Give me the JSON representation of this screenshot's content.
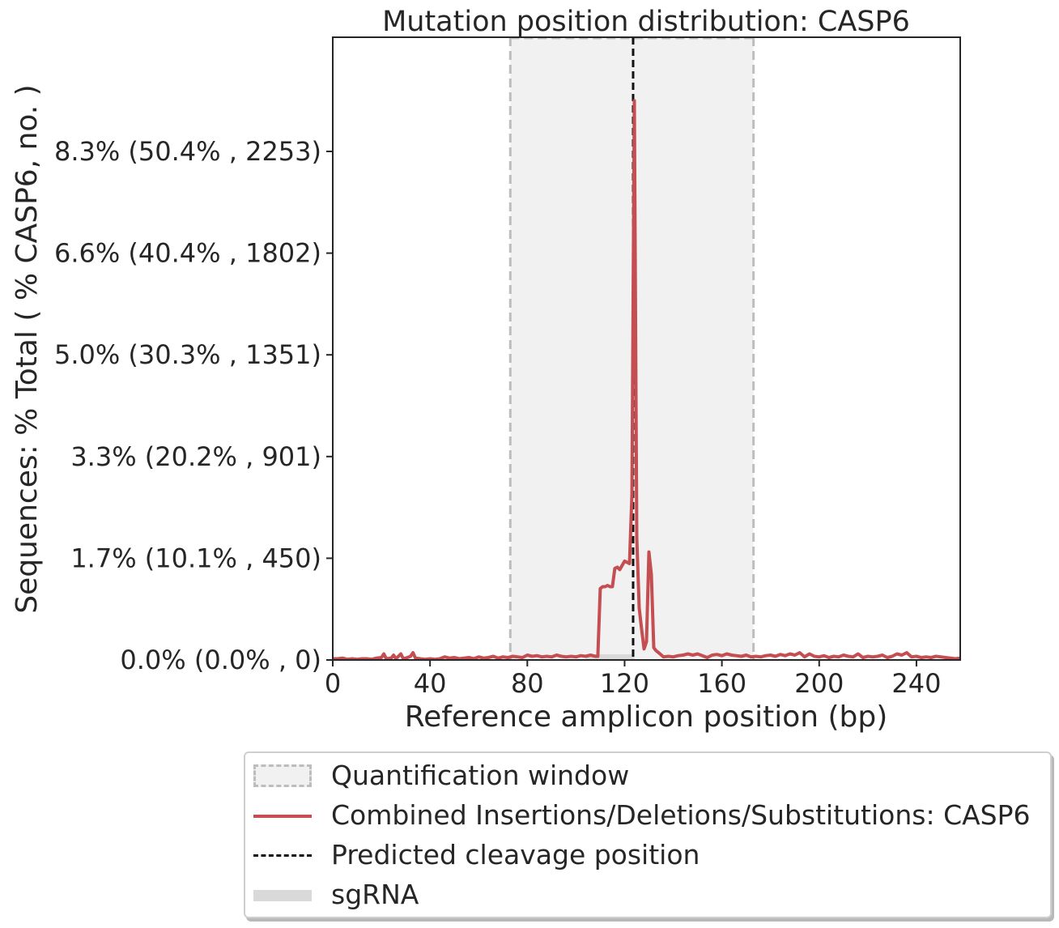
{
  "chart_data": {
    "type": "line",
    "title": "Mutation position distribution: CASP6",
    "xlabel": "Reference amplicon position (bp)",
    "ylabel": "Sequences: % Total ( % CASP6, no. )",
    "xlim": [
      0,
      258
    ],
    "ylim": [
      0,
      10.2
    ],
    "x_ticks": [
      0,
      40,
      80,
      120,
      160,
      200,
      240
    ],
    "y_ticks": [
      {
        "value": 0.0,
        "label": "0.0% (0.0% , 0)"
      },
      {
        "value": 1.666,
        "label": "1.7% (10.1% , 450)"
      },
      {
        "value": 3.332,
        "label": "3.3% (20.2% , 901)"
      },
      {
        "value": 4.998,
        "label": "5.0% (30.3% , 1351)"
      },
      {
        "value": 6.664,
        "label": "6.6% (40.4% , 1802)"
      },
      {
        "value": 8.33,
        "label": "8.3% (50.4% , 2253)"
      }
    ],
    "quantification_window": [
      73,
      173
    ],
    "cleavage_position": 123.5,
    "sgrna": [
      104,
      124
    ],
    "series": [
      {
        "name": "Combined Insertions/Deletions/Substitutions: CASP6",
        "color": "#c44e52",
        "x": [
          0,
          2,
          4,
          6,
          8,
          10,
          12,
          14,
          16,
          18,
          20,
          21,
          22,
          24,
          25,
          26,
          28,
          29,
          30,
          32,
          33,
          34,
          36,
          38,
          40,
          42,
          44,
          46,
          48,
          50,
          52,
          54,
          56,
          58,
          60,
          62,
          64,
          66,
          68,
          70,
          72,
          74,
          76,
          78,
          80,
          82,
          84,
          86,
          88,
          90,
          92,
          94,
          96,
          98,
          100,
          102,
          104,
          106,
          108,
          109,
          110,
          111,
          112,
          113,
          114,
          115,
          116,
          117,
          118,
          119,
          120,
          121,
          122,
          123,
          124,
          125,
          126,
          127,
          128,
          129,
          130,
          131,
          132,
          133,
          134,
          136,
          138,
          140,
          142,
          144,
          146,
          148,
          150,
          152,
          154,
          156,
          158,
          160,
          162,
          164,
          166,
          168,
          170,
          172,
          174,
          176,
          178,
          180,
          182,
          184,
          186,
          188,
          190,
          192,
          194,
          196,
          198,
          200,
          202,
          204,
          206,
          208,
          210,
          212,
          214,
          216,
          218,
          220,
          222,
          224,
          226,
          228,
          230,
          232,
          234,
          236,
          238,
          240,
          242,
          244,
          246,
          248,
          250,
          252,
          254,
          256,
          258
        ],
        "y": [
          0.02,
          0.02,
          0.03,
          0.01,
          0.02,
          0.01,
          0.02,
          0.02,
          0.01,
          0.03,
          0.04,
          0.1,
          0.02,
          0.03,
          0.08,
          0.02,
          0.1,
          0.02,
          0.03,
          0.06,
          0.12,
          0.03,
          0.02,
          0.01,
          0.02,
          0.01,
          0.02,
          0.05,
          0.03,
          0.04,
          0.02,
          0.03,
          0.04,
          0.02,
          0.05,
          0.03,
          0.04,
          0.06,
          0.03,
          0.05,
          0.04,
          0.06,
          0.05,
          0.04,
          0.08,
          0.06,
          0.07,
          0.05,
          0.06,
          0.05,
          0.08,
          0.06,
          0.05,
          0.06,
          0.05,
          0.07,
          0.06,
          0.08,
          0.06,
          0.06,
          1.17,
          1.2,
          1.2,
          1.22,
          1.2,
          1.2,
          1.5,
          1.52,
          1.48,
          1.55,
          1.62,
          1.6,
          1.58,
          2.7,
          9.16,
          2.0,
          0.85,
          0.5,
          0.18,
          0.3,
          1.77,
          1.4,
          0.2,
          0.15,
          0.12,
          0.05,
          0.06,
          0.05,
          0.07,
          0.08,
          0.1,
          0.08,
          0.1,
          0.07,
          0.04,
          0.08,
          0.09,
          0.07,
          0.1,
          0.08,
          0.07,
          0.06,
          0.08,
          0.05,
          0.06,
          0.05,
          0.07,
          0.08,
          0.06,
          0.09,
          0.07,
          0.1,
          0.08,
          0.12,
          0.05,
          0.1,
          0.06,
          0.05,
          0.07,
          0.04,
          0.06,
          0.05,
          0.08,
          0.06,
          0.05,
          0.1,
          0.04,
          0.06,
          0.05,
          0.06,
          0.08,
          0.04,
          0.06,
          0.1,
          0.08,
          0.12,
          0.05,
          0.06,
          0.04,
          0.05,
          0.04,
          0.06,
          0.05,
          0.04,
          0.03,
          0.02,
          0.03
        ]
      }
    ],
    "legend_position": "lower center (below plot)",
    "grid": false
  },
  "legend": {
    "items": [
      {
        "key": "window",
        "label": "Quantification window"
      },
      {
        "key": "line",
        "label": "Combined Insertions/Deletions/Substitutions: CASP6"
      },
      {
        "key": "cleavage",
        "label": "Predicted cleavage position"
      },
      {
        "key": "sgrna",
        "label": "sgRNA"
      }
    ]
  },
  "colors": {
    "window_fill": "#f1f1f1",
    "window_edge": "#bdbdbd",
    "line": "#c44e52",
    "cleavage": "#111111",
    "sgrna": "#d9d9d9",
    "axis": "#262626"
  }
}
